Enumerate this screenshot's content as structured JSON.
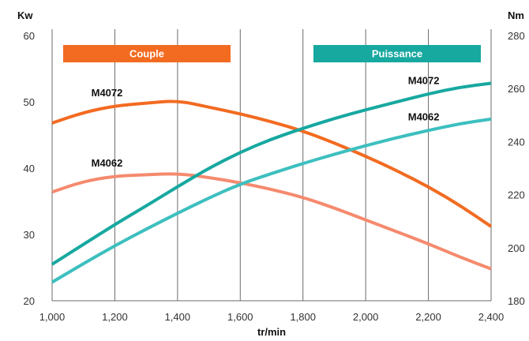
{
  "chart_data": {
    "type": "line",
    "xlabel": "tr/min",
    "x_ticks": [
      "1,000",
      "1,200",
      "1,400",
      "1,600",
      "1,800",
      "2,000",
      "2,200",
      "2,400"
    ],
    "xlim": [
      1000,
      2400
    ],
    "left_axis": {
      "unit": "Kw",
      "ylim": [
        20,
        60
      ],
      "ticks": [
        "20",
        "30",
        "40",
        "50",
        "60"
      ]
    },
    "right_axis": {
      "unit": "Nm",
      "ylim": [
        180,
        280
      ],
      "ticks": [
        "180",
        "200",
        "220",
        "240",
        "260",
        "280"
      ]
    },
    "grid": "vertical",
    "legend": [
      {
        "text": "Couple",
        "color": "#F26B21"
      },
      {
        "text": "Puissance",
        "color": "#17A8A0"
      }
    ],
    "series": [
      {
        "name": "M4072",
        "group": "Couple",
        "axis": "right",
        "color": "#F26B21",
        "x": [
          1000,
          1100,
          1200,
          1300,
          1400,
          1500,
          1600,
          1700,
          1800,
          1900,
          2000,
          2100,
          2200,
          2300,
          2400
        ],
        "values": [
          247,
          251,
          253.5,
          254.5,
          255.5,
          253,
          250.5,
          247.5,
          244,
          239.5,
          234.5,
          229,
          223,
          216,
          208
        ]
      },
      {
        "name": "M4062",
        "group": "Couple",
        "axis": "right",
        "color": "#F58A6E",
        "x": [
          1000,
          1100,
          1200,
          1300,
          1400,
          1500,
          1600,
          1700,
          1800,
          1900,
          2000,
          2100,
          2200,
          2300,
          2400
        ],
        "values": [
          221,
          225,
          227,
          227.5,
          228,
          226.5,
          224.5,
          222,
          219,
          215,
          210.5,
          206,
          201.5,
          196.5,
          192
        ]
      },
      {
        "name": "M4072",
        "group": "Puissance",
        "axis": "left",
        "color": "#17A8A0",
        "x": [
          1000,
          1100,
          1200,
          1300,
          1400,
          1500,
          1600,
          1700,
          1800,
          1900,
          2000,
          2100,
          2200,
          2300,
          2400
        ],
        "values": [
          25.5,
          28.5,
          31.5,
          34.3,
          37.2,
          40,
          42.4,
          44.4,
          46,
          47.5,
          48.8,
          50,
          51.2,
          52.2,
          52.8
        ]
      },
      {
        "name": "M4062",
        "group": "Puissance",
        "axis": "left",
        "color": "#3DBFBF",
        "x": [
          1000,
          1100,
          1200,
          1300,
          1400,
          1500,
          1600,
          1700,
          1800,
          1900,
          2000,
          2100,
          2200,
          2300,
          2400
        ],
        "values": [
          22.8,
          25.6,
          28.3,
          30.8,
          33.2,
          35.5,
          37.6,
          39.2,
          40.7,
          42.1,
          43.4,
          44.6,
          45.7,
          46.7,
          47.4
        ]
      }
    ],
    "series_labels": [
      {
        "text": "M4072",
        "series_index": 0,
        "at_x": 1175,
        "offset": "above"
      },
      {
        "text": "M4062",
        "series_index": 1,
        "at_x": 1175,
        "offset": "above"
      },
      {
        "text": "M4072",
        "series_index": 2,
        "at_x": 2185,
        "offset": "above"
      },
      {
        "text": "M4062",
        "series_index": 3,
        "at_x": 2185,
        "offset": "above"
      }
    ]
  }
}
